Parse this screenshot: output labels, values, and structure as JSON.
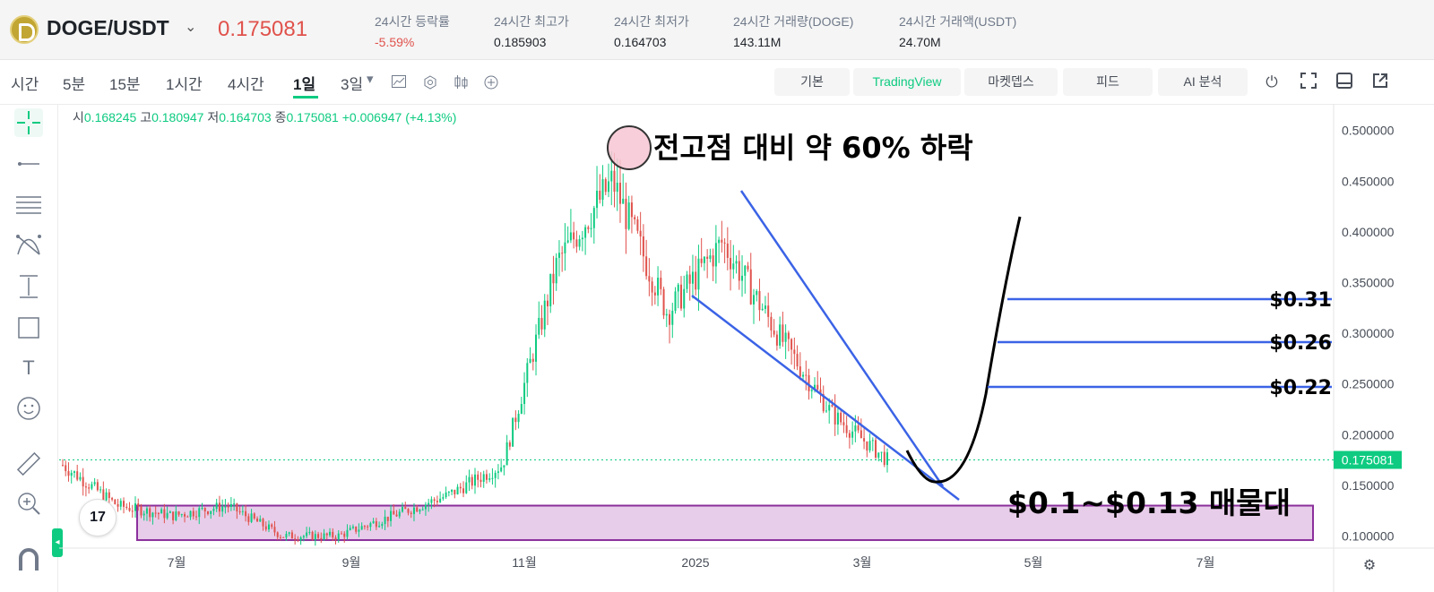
{
  "header": {
    "pair": "DOGE/USDT",
    "price": "0.175081",
    "stats": [
      {
        "label": "24시간 등락률",
        "value": "-5.59%",
        "negative": true
      },
      {
        "label": "24시간 최고가",
        "value": "0.185903"
      },
      {
        "label": "24시간 최저가",
        "value": "0.164703"
      },
      {
        "label": "24시간 거래량(DOGE)",
        "value": "143.11M"
      },
      {
        "label": "24시간 거래액(USDT)",
        "value": "24.70M"
      }
    ]
  },
  "toolbar": {
    "timeframes": [
      "시간",
      "5분",
      "15분",
      "1시간",
      "4시간",
      "1일",
      "3일"
    ],
    "active_timeframe": "1일",
    "view_buttons": [
      "기본",
      "TradingView",
      "마켓뎁스",
      "피드",
      "AI 분석"
    ],
    "active_view": "TradingView"
  },
  "ohlc": {
    "o_label": "시",
    "o": "0.168245",
    "h_label": "고",
    "h": "0.180947",
    "l_label": "저",
    "l": "0.164703",
    "c_label": "종",
    "c": "0.175081",
    "change": "+0.006947 (+4.13%)"
  },
  "logo_text": "17",
  "colors": {
    "up": "#0ecb81",
    "down": "#e0524c",
    "trend": "#3b63e6",
    "zone_fill": "#e8cdea",
    "zone_border": "#8b2f9c",
    "marker": "#f6c6d2"
  },
  "chart_data": {
    "type": "candlestick",
    "ylim": [
      0.06,
      0.5
    ],
    "y_ticks": [
      "0.500000",
      "0.450000",
      "0.400000",
      "0.350000",
      "0.300000",
      "0.250000",
      "0.200000",
      "0.150000",
      "0.100000"
    ],
    "x_ticks": [
      "7월",
      "9월",
      "11월",
      "2025",
      "3월",
      "5월",
      "7월"
    ],
    "last_price_label": "0.175081",
    "annotations": {
      "peak_text": "전고점 대비 약 60% 하락",
      "targets": [
        "$0.31",
        "$0.26",
        "$0.22"
      ],
      "zone_text": "$0.1~$0.13 매물대"
    },
    "price_path_approx": [
      {
        "date": "2024-06",
        "close": 0.17
      },
      {
        "date": "2024-06-15",
        "close": 0.13
      },
      {
        "date": "2024-07",
        "close": 0.12
      },
      {
        "date": "2024-07-25",
        "close": 0.13
      },
      {
        "date": "2024-08-05",
        "close": 0.1
      },
      {
        "date": "2024-09-10",
        "close": 0.1
      },
      {
        "date": "2024-10-01",
        "close": 0.12
      },
      {
        "date": "2024-10-25",
        "close": 0.14
      },
      {
        "date": "2024-11-01",
        "close": 0.17
      },
      {
        "date": "2024-11-12",
        "close": 0.37
      },
      {
        "date": "2024-12-08",
        "close": 0.45
      },
      {
        "date": "2024-12-25",
        "close": 0.32
      },
      {
        "date": "2025-01-18",
        "close": 0.39
      },
      {
        "date": "2025-02-03",
        "close": 0.3
      },
      {
        "date": "2025-02-25",
        "close": 0.22
      },
      {
        "date": "2025-03-10",
        "close": 0.175
      }
    ]
  }
}
